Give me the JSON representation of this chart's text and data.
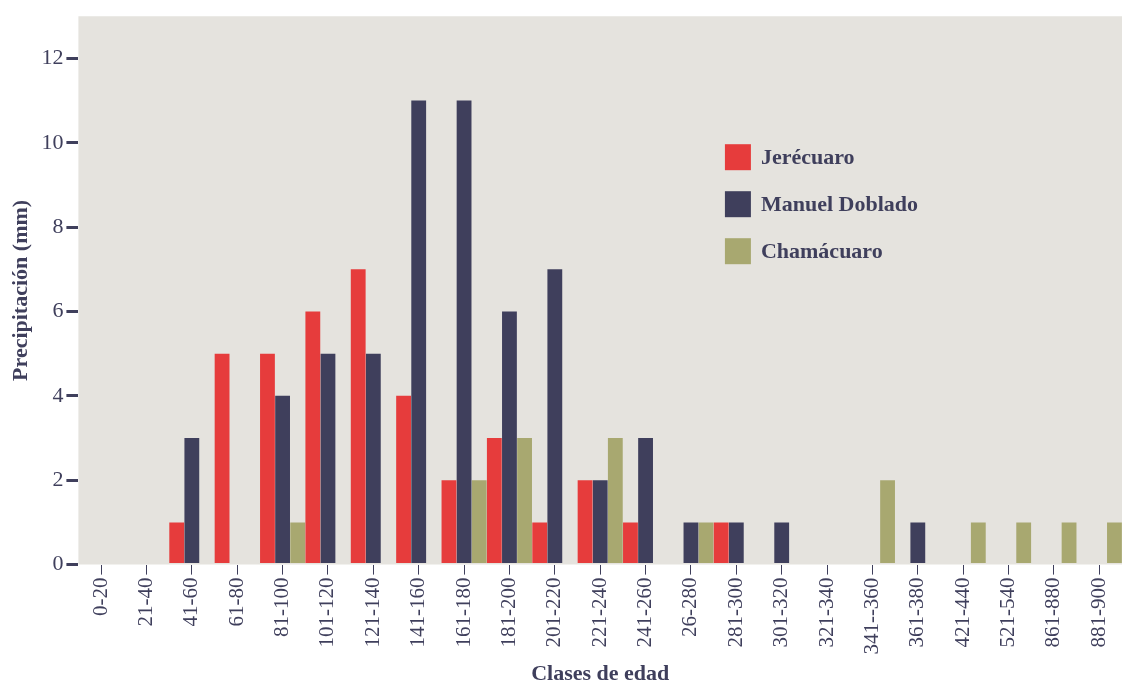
{
  "chart_data": {
    "type": "bar",
    "xlabel": "Clases de edad",
    "ylabel": "Precipitación (mm)",
    "categories": [
      "0-20",
      "21-40",
      "41-60",
      "61-80",
      "81-100",
      "101-120",
      "121-140",
      "141-160",
      "161-180",
      "181-200",
      "201-220",
      "221-240",
      "241-260",
      "26-280",
      "281-300",
      "301-320",
      "321-340",
      "341--360",
      "361-380",
      "421-440",
      "521-540",
      "861-880",
      "881-900"
    ],
    "series": [
      {
        "name": "Jerécuaro",
        "color": "#e63c3c",
        "values": [
          0,
          0,
          1,
          5,
          5,
          6,
          7,
          4,
          2,
          3,
          1,
          2,
          1,
          0,
          1,
          0,
          0,
          0,
          0,
          0,
          0,
          0,
          0
        ]
      },
      {
        "name": "Manuel Doblado",
        "color": "#3f3f5c",
        "values": [
          0,
          0,
          3,
          0,
          4,
          5,
          5,
          11,
          11,
          6,
          7,
          2,
          3,
          1,
          1,
          1,
          0,
          0,
          1,
          0,
          0,
          0,
          0
        ]
      },
      {
        "name": "Chamácuaro",
        "color": "#a8a870",
        "values": [
          0,
          0,
          0,
          0,
          1,
          0,
          0,
          0,
          2,
          3,
          0,
          3,
          0,
          1,
          0,
          0,
          0,
          2,
          0,
          1,
          1,
          1,
          1
        ]
      }
    ],
    "ylim": [
      0,
      13
    ],
    "yticks": [
      0,
      2,
      4,
      6,
      8,
      10,
      12
    ],
    "grid": false,
    "legend": "top right"
  }
}
